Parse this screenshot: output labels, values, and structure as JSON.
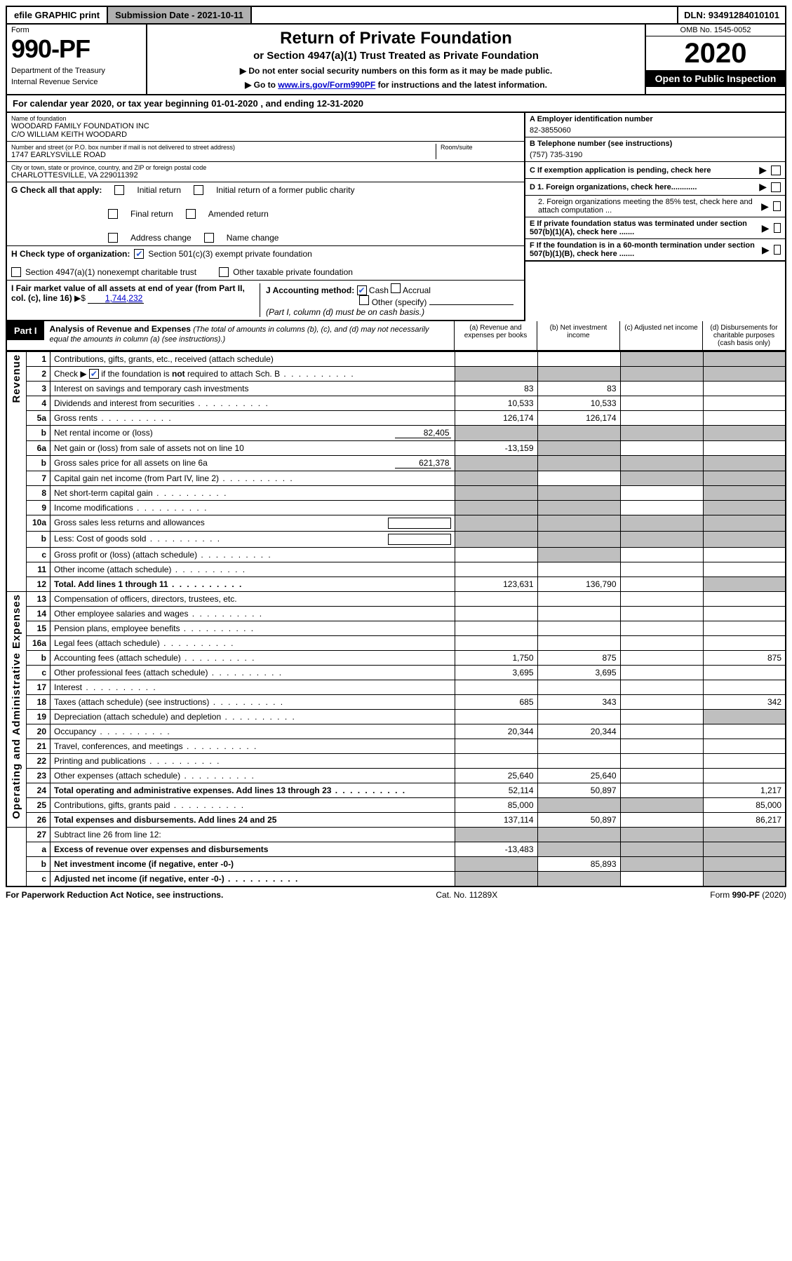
{
  "topbar": {
    "efile": "efile GRAPHIC print",
    "submission": "Submission Date - 2021-10-11",
    "dln": "DLN: 93491284010101"
  },
  "header": {
    "form_word": "Form",
    "form_num": "990-PF",
    "dept1": "Department of the Treasury",
    "dept2": "Internal Revenue Service",
    "title1": "Return of Private Foundation",
    "title2": "or Section 4947(a)(1) Trust Treated as Private Foundation",
    "sub1": "▶ Do not enter social security numbers on this form as it may be made public.",
    "sub2_pre": "▶ Go to ",
    "sub2_link": "www.irs.gov/Form990PF",
    "sub2_post": " for instructions and the latest information.",
    "omb": "OMB No. 1545-0052",
    "year": "2020",
    "open": "Open to Public Inspection"
  },
  "cal": "For calendar year 2020, or tax year beginning 01-01-2020              , and ending 12-31-2020",
  "id": {
    "name_lbl": "Name of foundation",
    "name1": "WOODARD FAMILY FOUNDATION INC",
    "name2": "C/O WILLIAM KEITH WOODARD",
    "addr_lbl": "Number and street (or P.O. box number if mail is not delivered to street address)",
    "addr": "1747 EARLYSVILLE ROAD",
    "room_lbl": "Room/suite",
    "city_lbl": "City or town, state or province, country, and ZIP or foreign postal code",
    "city": "CHARLOTTESVILLE, VA  229011392",
    "a_lbl": "A Employer identification number",
    "a_val": "82-3855060",
    "b_lbl": "B Telephone number (see instructions)",
    "b_val": "(757) 735-3190",
    "c_lbl": "C If exemption application is pending, check here",
    "d1": "D 1. Foreign organizations, check here............",
    "d2": "2. Foreign organizations meeting the 85% test, check here and attach computation ...",
    "e": "E  If private foundation status was terminated under section 507(b)(1)(A), check here .......",
    "f": "F  If the foundation is in a 60-month termination under section 507(b)(1)(B), check here .......",
    "g_lbl": "G Check all that apply:",
    "g_opts": [
      "Initial return",
      "Initial return of a former public charity",
      "Final return",
      "Amended return",
      "Address change",
      "Name change"
    ],
    "h_lbl": "H Check type of organization:",
    "h1": "Section 501(c)(3) exempt private foundation",
    "h2": "Section 4947(a)(1) nonexempt charitable trust",
    "h3": "Other taxable private foundation",
    "i_lbl": "I Fair market value of all assets at end of year (from Part II, col. (c), line 16)",
    "i_val": "1,744,232",
    "j_lbl": "J Accounting method:",
    "j_cash": "Cash",
    "j_accr": "Accrual",
    "j_other": "Other (specify)",
    "j_note": "(Part I, column (d) must be on cash basis.)"
  },
  "part1": {
    "tag": "Part I",
    "head": "Analysis of Revenue and Expenses",
    "head_note": " (The total of amounts in columns (b), (c), and (d) may not necessarily equal the amounts in column (a) (see instructions).)",
    "col_a": "(a)  Revenue and expenses per books",
    "col_b": "(b)  Net investment income",
    "col_c": "(c)  Adjusted net income",
    "col_d": "(d)  Disbursements for charitable purposes (cash basis only)"
  },
  "side": {
    "rev": "Revenue",
    "exp": "Operating and Administrative Expenses"
  },
  "rows": [
    {
      "n": "1",
      "d": "Contributions, gifts, grants, etc., received (attach schedule)",
      "a": "",
      "b": "",
      "c": "",
      "e": "",
      "shade_c": true,
      "shade_d": true
    },
    {
      "n": "2",
      "d": "Check ▶ ☑ if the foundation is not required to attach Sch. B",
      "dots": true,
      "a": "",
      "b": "",
      "c": "",
      "e": "",
      "shade_a": true,
      "shade_b": true,
      "shade_c": true,
      "shade_d": true,
      "check": true
    },
    {
      "n": "3",
      "d": "Interest on savings and temporary cash investments",
      "a": "83",
      "b": "83",
      "c": "",
      "e": ""
    },
    {
      "n": "4",
      "d": "Dividends and interest from securities",
      "dots": true,
      "a": "10,533",
      "b": "10,533",
      "c": "",
      "e": ""
    },
    {
      "n": "5a",
      "d": "Gross rents",
      "dots": true,
      "a": "126,174",
      "b": "126,174",
      "c": "",
      "e": ""
    },
    {
      "n": "b",
      "d": "Net rental income or (loss)",
      "inline": "82,405",
      "a": "",
      "b": "",
      "c": "",
      "e": "",
      "shade_a": true,
      "shade_b": true,
      "shade_c": true,
      "shade_d": true
    },
    {
      "n": "6a",
      "d": "Net gain or (loss) from sale of assets not on line 10",
      "a": "-13,159",
      "b": "",
      "c": "",
      "e": "",
      "shade_b": true
    },
    {
      "n": "b",
      "d": "Gross sales price for all assets on line 6a",
      "inline": "621,378",
      "a": "",
      "b": "",
      "c": "",
      "e": "",
      "shade_a": true,
      "shade_b": true,
      "shade_c": true,
      "shade_d": true
    },
    {
      "n": "7",
      "d": "Capital gain net income (from Part IV, line 2)",
      "dots": true,
      "a": "",
      "b": "",
      "c": "",
      "e": "",
      "shade_a": true,
      "shade_c": true,
      "shade_d": true
    },
    {
      "n": "8",
      "d": "Net short-term capital gain",
      "dots": true,
      "a": "",
      "b": "",
      "c": "",
      "e": "",
      "shade_a": true,
      "shade_b": true,
      "shade_d": true
    },
    {
      "n": "9",
      "d": "Income modifications",
      "dots": true,
      "a": "",
      "b": "",
      "c": "",
      "e": "",
      "shade_a": true,
      "shade_b": true,
      "shade_d": true
    },
    {
      "n": "10a",
      "d": "Gross sales less returns and allowances",
      "box": true,
      "a": "",
      "b": "",
      "c": "",
      "e": "",
      "shade_a": true,
      "shade_b": true,
      "shade_c": true,
      "shade_d": true
    },
    {
      "n": "b",
      "d": "Less: Cost of goods sold",
      "dots": true,
      "box": true,
      "a": "",
      "b": "",
      "c": "",
      "e": "",
      "shade_a": true,
      "shade_b": true,
      "shade_c": true,
      "shade_d": true
    },
    {
      "n": "c",
      "d": "Gross profit or (loss) (attach schedule)",
      "dots": true,
      "a": "",
      "b": "",
      "c": "",
      "e": "",
      "shade_b": true
    },
    {
      "n": "11",
      "d": "Other income (attach schedule)",
      "dots": true,
      "a": "",
      "b": "",
      "c": "",
      "e": ""
    },
    {
      "n": "12",
      "d": "Total. Add lines 1 through 11",
      "dots": true,
      "b2": true,
      "a": "123,631",
      "b": "136,790",
      "c": "",
      "e": "",
      "shade_d": true
    }
  ],
  "rows2": [
    {
      "n": "13",
      "d": "Compensation of officers, directors, trustees, etc.",
      "a": "",
      "b": "",
      "c": "",
      "e": ""
    },
    {
      "n": "14",
      "d": "Other employee salaries and wages",
      "dots": true,
      "a": "",
      "b": "",
      "c": "",
      "e": ""
    },
    {
      "n": "15",
      "d": "Pension plans, employee benefits",
      "dots": true,
      "a": "",
      "b": "",
      "c": "",
      "e": ""
    },
    {
      "n": "16a",
      "d": "Legal fees (attach schedule)",
      "dots": true,
      "a": "",
      "b": "",
      "c": "",
      "e": ""
    },
    {
      "n": "b",
      "d": "Accounting fees (attach schedule)",
      "dots": true,
      "a": "1,750",
      "b": "875",
      "c": "",
      "e": "875"
    },
    {
      "n": "c",
      "d": "Other professional fees (attach schedule)",
      "dots": true,
      "a": "3,695",
      "b": "3,695",
      "c": "",
      "e": ""
    },
    {
      "n": "17",
      "d": "Interest",
      "dots": true,
      "a": "",
      "b": "",
      "c": "",
      "e": ""
    },
    {
      "n": "18",
      "d": "Taxes (attach schedule) (see instructions)",
      "dots": true,
      "a": "685",
      "b": "343",
      "c": "",
      "e": "342"
    },
    {
      "n": "19",
      "d": "Depreciation (attach schedule) and depletion",
      "dots": true,
      "a": "",
      "b": "",
      "c": "",
      "e": "",
      "shade_d": true
    },
    {
      "n": "20",
      "d": "Occupancy",
      "dots": true,
      "a": "20,344",
      "b": "20,344",
      "c": "",
      "e": ""
    },
    {
      "n": "21",
      "d": "Travel, conferences, and meetings",
      "dots": true,
      "a": "",
      "b": "",
      "c": "",
      "e": ""
    },
    {
      "n": "22",
      "d": "Printing and publications",
      "dots": true,
      "a": "",
      "b": "",
      "c": "",
      "e": ""
    },
    {
      "n": "23",
      "d": "Other expenses (attach schedule)",
      "dots": true,
      "a": "25,640",
      "b": "25,640",
      "c": "",
      "e": ""
    },
    {
      "n": "24",
      "d": "Total operating and administrative expenses. Add lines 13 through 23",
      "dots": true,
      "b2": true,
      "a": "52,114",
      "b": "50,897",
      "c": "",
      "e": "1,217"
    },
    {
      "n": "25",
      "d": "Contributions, gifts, grants paid",
      "dots": true,
      "a": "85,000",
      "b": "",
      "c": "",
      "e": "85,000",
      "shade_b": true,
      "shade_c": true
    },
    {
      "n": "26",
      "d": "Total expenses and disbursements. Add lines 24 and 25",
      "b2": true,
      "a": "137,114",
      "b": "50,897",
      "c": "",
      "e": "86,217"
    }
  ],
  "rows3": [
    {
      "n": "27",
      "d": "Subtract line 26 from line 12:",
      "a": "",
      "b": "",
      "c": "",
      "e": "",
      "shade_a": true,
      "shade_b": true,
      "shade_c": true,
      "shade_d": true
    },
    {
      "n": "a",
      "d": "Excess of revenue over expenses and disbursements",
      "b2": true,
      "a": "-13,483",
      "b": "",
      "c": "",
      "e": "",
      "shade_b": true,
      "shade_c": true,
      "shade_d": true
    },
    {
      "n": "b",
      "d": "Net investment income (if negative, enter -0-)",
      "b2": true,
      "a": "",
      "b": "85,893",
      "c": "",
      "e": "",
      "shade_a": true,
      "shade_c": true,
      "shade_d": true
    },
    {
      "n": "c",
      "d": "Adjusted net income (if negative, enter -0-)",
      "dots": true,
      "b2": true,
      "a": "",
      "b": "",
      "c": "",
      "e": "",
      "shade_a": true,
      "shade_b": true,
      "shade_d": true
    }
  ],
  "footer": {
    "left": "For Paperwork Reduction Act Notice, see instructions.",
    "mid": "Cat. No. 11289X",
    "right": "Form 990-PF (2020)"
  }
}
